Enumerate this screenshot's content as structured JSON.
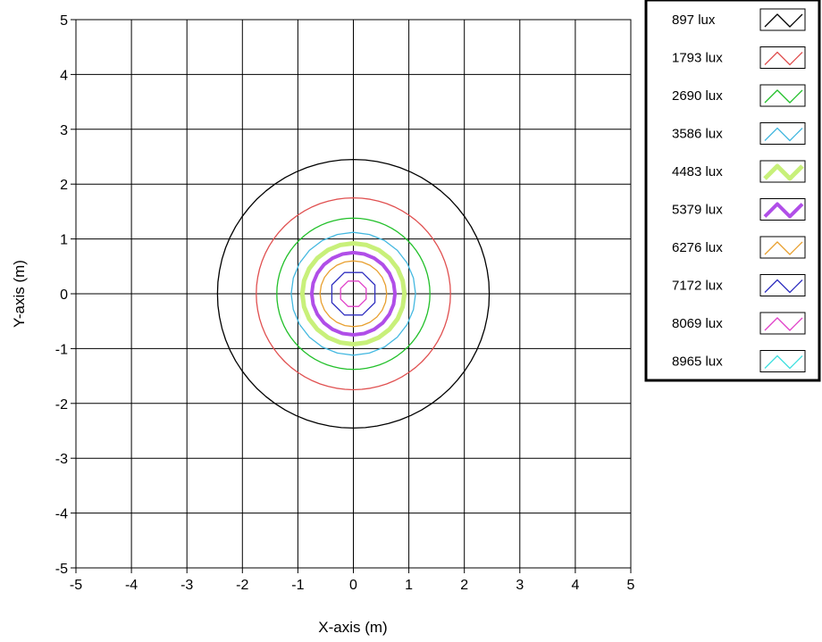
{
  "chart_data": {
    "type": "line",
    "title": "",
    "xlabel": "X-axis (m)",
    "ylabel": "Y-axis (m)",
    "xlim": [
      -5,
      5
    ],
    "ylim": [
      -5,
      5
    ],
    "xticks": [
      "-5",
      "-4",
      "-3",
      "-2",
      "-1",
      "0",
      "1",
      "2",
      "3",
      "4",
      "5"
    ],
    "yticks": [
      "5",
      "4",
      "3",
      "2",
      "1",
      "0",
      "-1",
      "-2",
      "-3",
      "-4",
      "-5"
    ],
    "grid": true,
    "legend_position": "top-right",
    "contour_center": [
      0,
      0
    ],
    "series": [
      {
        "name": "897 lux",
        "radius": 2.45,
        "color": "#000000",
        "width": 1.3
      },
      {
        "name": "1793 lux",
        "radius": 1.75,
        "color": "#e05050",
        "width": 1.3
      },
      {
        "name": "2690 lux",
        "radius": 1.38,
        "color": "#22c02a",
        "width": 1.3
      },
      {
        "name": "3586 lux",
        "radius": 1.12,
        "color": "#44b8e0",
        "width": 1.3
      },
      {
        "name": "4483 lux",
        "radius": 0.92,
        "color": "#c8f07a",
        "width": 5
      },
      {
        "name": "5379 lux",
        "radius": 0.75,
        "color": "#b04ee8",
        "width": 4
      },
      {
        "name": "6276 lux",
        "radius": 0.6,
        "color": "#e8a030",
        "width": 1.3
      },
      {
        "name": "7172 lux",
        "radius": 0.42,
        "color": "#3030c0",
        "width": 1.3
      },
      {
        "name": "8069 lux",
        "radius": 0.25,
        "color": "#e040c8",
        "width": 1.3
      },
      {
        "name": "8965 lux",
        "radius": 0.0,
        "color": "#40e0e0",
        "width": 1.3
      }
    ]
  }
}
